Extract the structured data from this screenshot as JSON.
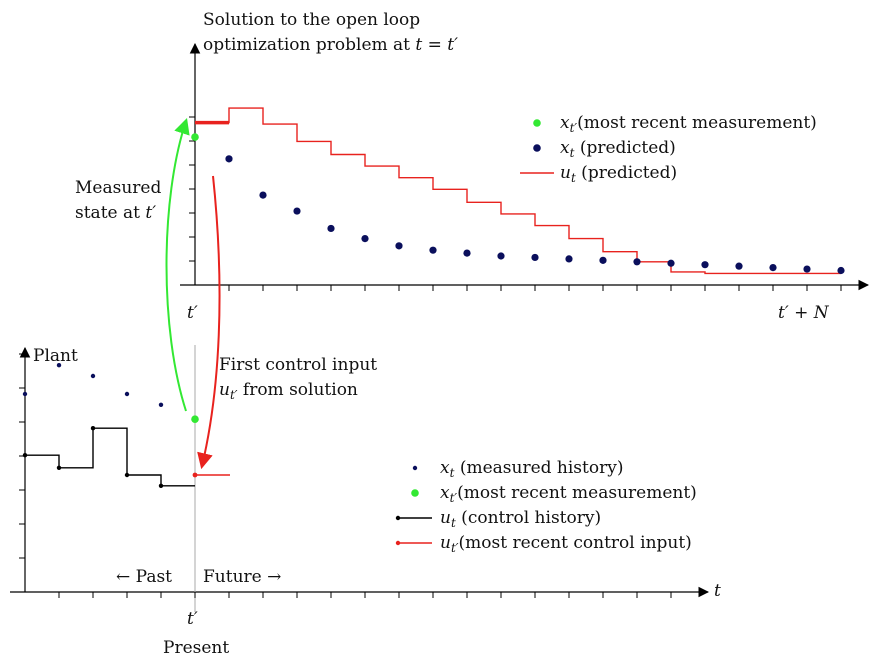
{
  "top_title": {
    "line1": "Solution to the open loop",
    "line2_text": "optimization problem at ",
    "line2_math": "t = t′"
  },
  "measured_state": {
    "line1": "Measured",
    "line2_text": "state at ",
    "line2_math": "t′"
  },
  "first_control": {
    "line1": "First control input",
    "line2_math": "u",
    "line2_sub": "t′",
    "line2_text": " from solution"
  },
  "top_axis": {
    "origin_label": "t′",
    "end_label": "t′ + N"
  },
  "bottom_axis": {
    "y_label": "Plant",
    "x_label": "t",
    "present_tick": "t′",
    "present_label": "Present",
    "past_label": "← Past",
    "future_label": "Future →"
  },
  "top_legend": [
    {
      "sym": "x",
      "sub": "t′",
      "text": "(most recent measurement)",
      "kind": "dot",
      "color": "#33e833"
    },
    {
      "sym": "x",
      "sub": "t",
      "text": " (predicted)",
      "kind": "dot",
      "color": "#0a0f5c"
    },
    {
      "sym": "u",
      "sub": "t",
      "text": " (predicted)",
      "kind": "line",
      "color": "#e8221e"
    }
  ],
  "bottom_legend": [
    {
      "sym": "x",
      "sub": "t",
      "text": " (measured history)",
      "kind": "smalldot",
      "color": "#0a0f5c"
    },
    {
      "sym": "x",
      "sub": "t′",
      "text": "(most recent measurement)",
      "kind": "dot",
      "color": "#33e833"
    },
    {
      "sym": "u",
      "sub": "t",
      "text": " (control history)",
      "kind": "line",
      "color": "#000000"
    },
    {
      "sym": "u",
      "sub": "t′",
      "text": "(most recent control input)",
      "kind": "line",
      "color": "#e8221e"
    }
  ],
  "colors": {
    "green": "#33e833",
    "navy": "#0a0f5c",
    "red": "#e8221e",
    "black": "#000000"
  },
  "chart_data": {
    "type": "line",
    "top_panel": {
      "measured_state": 5.1,
      "predicted_state": [
        4.35,
        3.1,
        2.55,
        1.95,
        1.6,
        1.35,
        1.2,
        1.1,
        1.0,
        0.95,
        0.9,
        0.85,
        0.8,
        0.75,
        0.7,
        0.65,
        0.6,
        0.55,
        0.5
      ],
      "predicted_control": [
        5.6,
        6.1,
        5.55,
        4.95,
        4.5,
        4.1,
        3.7,
        3.3,
        2.85,
        2.45,
        2.05,
        1.6,
        1.15,
        0.8,
        0.45,
        0.4,
        0.4,
        0.4,
        0.4
      ]
    },
    "bottom_panel": {
      "measured_history": [
        5.5,
        6.3,
        6.0,
        5.5,
        5.2
      ],
      "measured_latest": 4.8,
      "control_history": [
        3.8,
        3.45,
        4.55,
        3.25,
        2.95
      ],
      "control_latest": 3.25
    }
  }
}
